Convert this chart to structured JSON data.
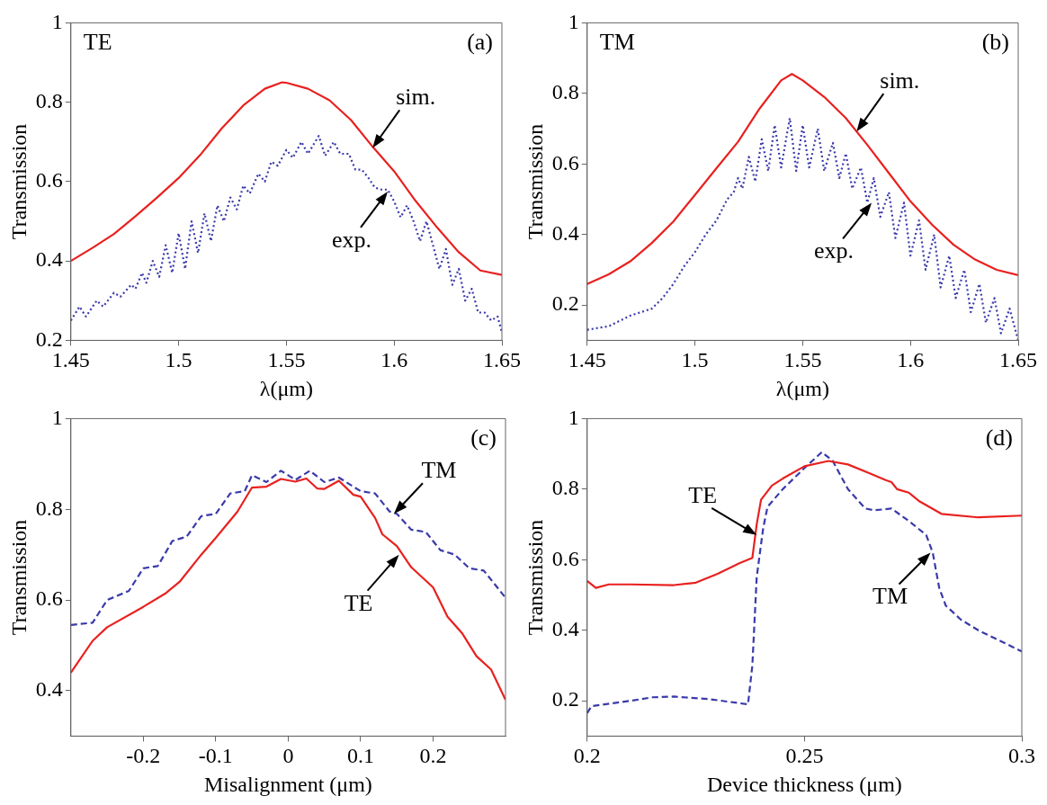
{
  "chart_data": [
    {
      "type": "line",
      "xlabel": "λ(μm)",
      "ylabel": "Transmission",
      "xlim": [
        1.45,
        1.65
      ],
      "ylim": [
        0.2,
        1
      ],
      "xticks": [
        1.45,
        1.5,
        1.55,
        1.6,
        1.65
      ],
      "yticks": [
        0.2,
        0.4,
        0.6,
        0.8,
        1
      ],
      "marker": "none",
      "annotations": [
        "TE",
        "(a)",
        {
          "text": "sim.",
          "x": 1.59,
          "y": 0.685
        },
        {
          "text": "exp.",
          "x": 1.597,
          "y": 0.575
        }
      ],
      "series": [
        {
          "color": "#e8211f",
          "line_style": "solid",
          "x": [
            1.45,
            1.46,
            1.47,
            1.48,
            1.49,
            1.5,
            1.51,
            1.52,
            1.53,
            1.54,
            1.548,
            1.55,
            1.56,
            1.57,
            1.58,
            1.59,
            1.6,
            1.61,
            1.62,
            1.63,
            1.64,
            1.65
          ],
          "values": [
            0.4,
            0.433,
            0.468,
            0.513,
            0.56,
            0.609,
            0.667,
            0.734,
            0.792,
            0.834,
            0.85,
            0.849,
            0.834,
            0.805,
            0.755,
            0.688,
            0.626,
            0.551,
            0.484,
            0.422,
            0.376,
            0.365
          ]
        },
        {
          "color": "#3a3aaa",
          "line_style": "dotted",
          "x": [
            1.45,
            1.454,
            1.457,
            1.462,
            1.465,
            1.47,
            1.473,
            1.478,
            1.48,
            1.483,
            1.485,
            1.488,
            1.491,
            1.494,
            1.497,
            1.5,
            1.503,
            1.506,
            1.509,
            1.512,
            1.515,
            1.518,
            1.521,
            1.524,
            1.527,
            1.53,
            1.533,
            1.537,
            1.54,
            1.543,
            1.546,
            1.55,
            1.553,
            1.557,
            1.56,
            1.565,
            1.568,
            1.572,
            1.575,
            1.579,
            1.582,
            1.585,
            1.588,
            1.591,
            1.594,
            1.597,
            1.6,
            1.603,
            1.606,
            1.609,
            1.612,
            1.615,
            1.618,
            1.621,
            1.624,
            1.627,
            1.63,
            1.633,
            1.636,
            1.639,
            1.642,
            1.645,
            1.648,
            1.65
          ],
          "values": [
            0.25,
            0.285,
            0.26,
            0.3,
            0.285,
            0.32,
            0.31,
            0.34,
            0.33,
            0.37,
            0.345,
            0.4,
            0.36,
            0.44,
            0.37,
            0.47,
            0.38,
            0.5,
            0.42,
            0.52,
            0.45,
            0.54,
            0.5,
            0.56,
            0.53,
            0.59,
            0.57,
            0.62,
            0.6,
            0.65,
            0.64,
            0.68,
            0.66,
            0.7,
            0.67,
            0.715,
            0.665,
            0.7,
            0.67,
            0.67,
            0.63,
            0.63,
            0.61,
            0.585,
            0.58,
            0.58,
            0.55,
            0.51,
            0.54,
            0.5,
            0.45,
            0.5,
            0.44,
            0.38,
            0.43,
            0.34,
            0.38,
            0.3,
            0.33,
            0.27,
            0.27,
            0.25,
            0.26,
            0.22
          ]
        }
      ]
    },
    {
      "type": "line",
      "xlabel": "λ(μm)",
      "ylabel": "Transmission",
      "xlim": [
        1.45,
        1.65
      ],
      "ylim": [
        0.1,
        1
      ],
      "xticks": [
        1.45,
        1.5,
        1.55,
        1.6,
        1.65
      ],
      "yticks": [
        0.2,
        0.4,
        0.6,
        0.8,
        1
      ],
      "marker": "none",
      "annotations": [
        "TM",
        "(b)",
        {
          "text": "sim.",
          "x": 1.575,
          "y": 0.692
        },
        {
          "text": "exp.",
          "x": 1.582,
          "y": 0.49
        }
      ],
      "series": [
        {
          "color": "#e8211f",
          "line_style": "solid",
          "x": [
            1.45,
            1.46,
            1.47,
            1.48,
            1.49,
            1.5,
            1.51,
            1.52,
            1.53,
            1.54,
            1.545,
            1.55,
            1.56,
            1.57,
            1.58,
            1.59,
            1.6,
            1.61,
            1.62,
            1.63,
            1.64,
            1.65
          ],
          "values": [
            0.26,
            0.287,
            0.324,
            0.376,
            0.437,
            0.512,
            0.588,
            0.663,
            0.757,
            0.837,
            0.855,
            0.837,
            0.79,
            0.73,
            0.654,
            0.574,
            0.494,
            0.428,
            0.371,
            0.329,
            0.3,
            0.285
          ]
        },
        {
          "color": "#3a3aaa",
          "line_style": "dotted",
          "x": [
            1.45,
            1.46,
            1.47,
            1.48,
            1.485,
            1.49,
            1.495,
            1.5,
            1.505,
            1.51,
            1.515,
            1.518,
            1.52,
            1.522,
            1.525,
            1.528,
            1.531,
            1.534,
            1.537,
            1.54,
            1.544,
            1.547,
            1.55,
            1.553,
            1.557,
            1.56,
            1.564,
            1.567,
            1.57,
            1.573,
            1.577,
            1.58,
            1.583,
            1.586,
            1.59,
            1.593,
            1.597,
            1.6,
            1.604,
            1.607,
            1.611,
            1.614,
            1.618,
            1.621,
            1.625,
            1.628,
            1.632,
            1.635,
            1.639,
            1.642,
            1.646,
            1.65
          ],
          "values": [
            0.13,
            0.14,
            0.17,
            0.19,
            0.22,
            0.26,
            0.31,
            0.35,
            0.4,
            0.44,
            0.5,
            0.52,
            0.56,
            0.53,
            0.62,
            0.55,
            0.67,
            0.58,
            0.71,
            0.59,
            0.73,
            0.58,
            0.71,
            0.59,
            0.7,
            0.58,
            0.66,
            0.56,
            0.63,
            0.53,
            0.59,
            0.49,
            0.56,
            0.45,
            0.52,
            0.39,
            0.49,
            0.34,
            0.44,
            0.3,
            0.4,
            0.25,
            0.34,
            0.22,
            0.3,
            0.18,
            0.26,
            0.15,
            0.22,
            0.12,
            0.19,
            0.1
          ]
        }
      ]
    },
    {
      "type": "line",
      "xlabel": "Misalignment (μm)",
      "ylabel": "Transmission",
      "xlim": [
        -0.3,
        0.3
      ],
      "ylim": [
        0.3,
        1
      ],
      "xticks": [
        -0.2,
        -0.1,
        0,
        0.1,
        0.2
      ],
      "yticks": [
        0.4,
        0.6,
        0.8,
        1
      ],
      "marker": "none",
      "annotations": [
        "(c)",
        {
          "text": "TM",
          "x": 0.146,
          "y": 0.79
        },
        {
          "text": "TE",
          "x": 0.153,
          "y": 0.7
        }
      ],
      "series": [
        {
          "color": "#e8211f",
          "line_style": "solid",
          "x": [
            -0.3,
            -0.27,
            -0.25,
            -0.2,
            -0.17,
            -0.15,
            -0.12,
            -0.1,
            -0.07,
            -0.05,
            -0.03,
            -0.01,
            0.01,
            0.025,
            0.04,
            0.05,
            0.07,
            0.09,
            0.1,
            0.12,
            0.13,
            0.15,
            0.17,
            0.2,
            0.22,
            0.24,
            0.26,
            0.28,
            0.3
          ],
          "values": [
            0.44,
            0.51,
            0.54,
            0.585,
            0.614,
            0.64,
            0.7,
            0.737,
            0.795,
            0.848,
            0.85,
            0.867,
            0.861,
            0.868,
            0.846,
            0.845,
            0.863,
            0.832,
            0.828,
            0.781,
            0.745,
            0.719,
            0.672,
            0.628,
            0.563,
            0.527,
            0.476,
            0.447,
            0.38
          ]
        },
        {
          "color": "#3a3aaa",
          "line_style": "dashed",
          "x": [
            -0.3,
            -0.27,
            -0.25,
            -0.22,
            -0.2,
            -0.18,
            -0.16,
            -0.14,
            -0.12,
            -0.1,
            -0.08,
            -0.06,
            -0.05,
            -0.03,
            -0.01,
            0.01,
            0.03,
            0.05,
            0.07,
            0.1,
            0.12,
            0.14,
            0.15,
            0.17,
            0.19,
            0.21,
            0.23,
            0.25,
            0.27,
            0.3
          ],
          "values": [
            0.545,
            0.55,
            0.6,
            0.62,
            0.67,
            0.675,
            0.73,
            0.74,
            0.785,
            0.79,
            0.835,
            0.84,
            0.875,
            0.86,
            0.885,
            0.865,
            0.885,
            0.86,
            0.87,
            0.84,
            0.835,
            0.795,
            0.79,
            0.755,
            0.75,
            0.71,
            0.7,
            0.67,
            0.665,
            0.605
          ]
        }
      ]
    },
    {
      "type": "line",
      "xlabel": "Device thickness (μm)",
      "ylabel": "Transmission",
      "xlim": [
        0.2,
        0.3
      ],
      "ylim": [
        0.1,
        1
      ],
      "xticks": [
        0.2,
        0.25,
        0.3
      ],
      "yticks": [
        0.2,
        0.4,
        0.6,
        0.8,
        1
      ],
      "marker": "none",
      "annotations": [
        "(d)",
        {
          "text": "TE",
          "x": 0.239,
          "y": 0.67
        },
        {
          "text": "TM",
          "x": 0.279,
          "y": 0.62
        }
      ],
      "series": [
        {
          "color": "#e8211f",
          "line_style": "solid",
          "x": [
            0.2,
            0.202,
            0.205,
            0.21,
            0.22,
            0.225,
            0.23,
            0.235,
            0.238,
            0.239,
            0.24,
            0.2425,
            0.245,
            0.25,
            0.2555,
            0.26,
            0.265,
            0.2688,
            0.27,
            0.2713,
            0.274,
            0.2765,
            0.2815,
            0.29,
            0.3
          ],
          "values": [
            0.54,
            0.52,
            0.53,
            0.53,
            0.528,
            0.535,
            0.56,
            0.59,
            0.605,
            0.7,
            0.77,
            0.81,
            0.83,
            0.865,
            0.88,
            0.87,
            0.845,
            0.825,
            0.82,
            0.8,
            0.79,
            0.765,
            0.73,
            0.72,
            0.725
          ]
        },
        {
          "color": "#3a3aaa",
          "line_style": "dashed",
          "x": [
            0.2,
            0.201,
            0.21,
            0.215,
            0.22,
            0.228,
            0.237,
            0.238,
            0.239,
            0.2405,
            0.2415,
            0.245,
            0.25,
            0.254,
            0.2565,
            0.26,
            0.264,
            0.266,
            0.27,
            0.274,
            0.278,
            0.2795,
            0.281,
            0.2825,
            0.286,
            0.29,
            0.295,
            0.3
          ],
          "values": [
            0.165,
            0.185,
            0.2,
            0.21,
            0.212,
            0.205,
            0.19,
            0.3,
            0.55,
            0.69,
            0.75,
            0.8,
            0.86,
            0.905,
            0.88,
            0.8,
            0.745,
            0.74,
            0.745,
            0.71,
            0.67,
            0.62,
            0.52,
            0.47,
            0.43,
            0.4,
            0.37,
            0.34
          ]
        }
      ]
    }
  ]
}
